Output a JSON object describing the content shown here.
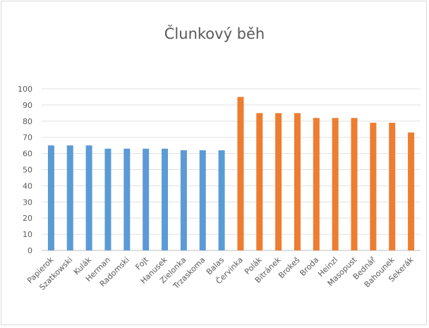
{
  "chart_data": {
    "type": "bar",
    "title": "Člunkový běh",
    "xlabel": "",
    "ylabel": "",
    "ylim": [
      0,
      100
    ],
    "yticks": [
      0,
      10,
      20,
      30,
      40,
      50,
      60,
      70,
      80,
      90,
      100
    ],
    "grid": true,
    "legend": "none",
    "categories": [
      "Papierok",
      "Szatkowski",
      "Kulák",
      "Herman",
      "Radomski",
      "Fojt",
      "Hanusek",
      "Zielonka",
      "Trzaskoma",
      "Balas",
      "Červinka",
      "Polák",
      "Bitránek",
      "Brokeš",
      "Broda",
      "Heinzl",
      "Masopust",
      "Bednář",
      "Bahounek",
      "Sekerák"
    ],
    "values": [
      65,
      65,
      65,
      63,
      63,
      63,
      63,
      62,
      62,
      62,
      95,
      85,
      85,
      85,
      82,
      82,
      82,
      79,
      79,
      73
    ],
    "colors": [
      "#5b9bd5",
      "#5b9bd5",
      "#5b9bd5",
      "#5b9bd5",
      "#5b9bd5",
      "#5b9bd5",
      "#5b9bd5",
      "#5b9bd5",
      "#5b9bd5",
      "#5b9bd5",
      "#ed7d31",
      "#ed7d31",
      "#ed7d31",
      "#ed7d31",
      "#ed7d31",
      "#ed7d31",
      "#ed7d31",
      "#ed7d31",
      "#ed7d31",
      "#ed7d31"
    ]
  }
}
